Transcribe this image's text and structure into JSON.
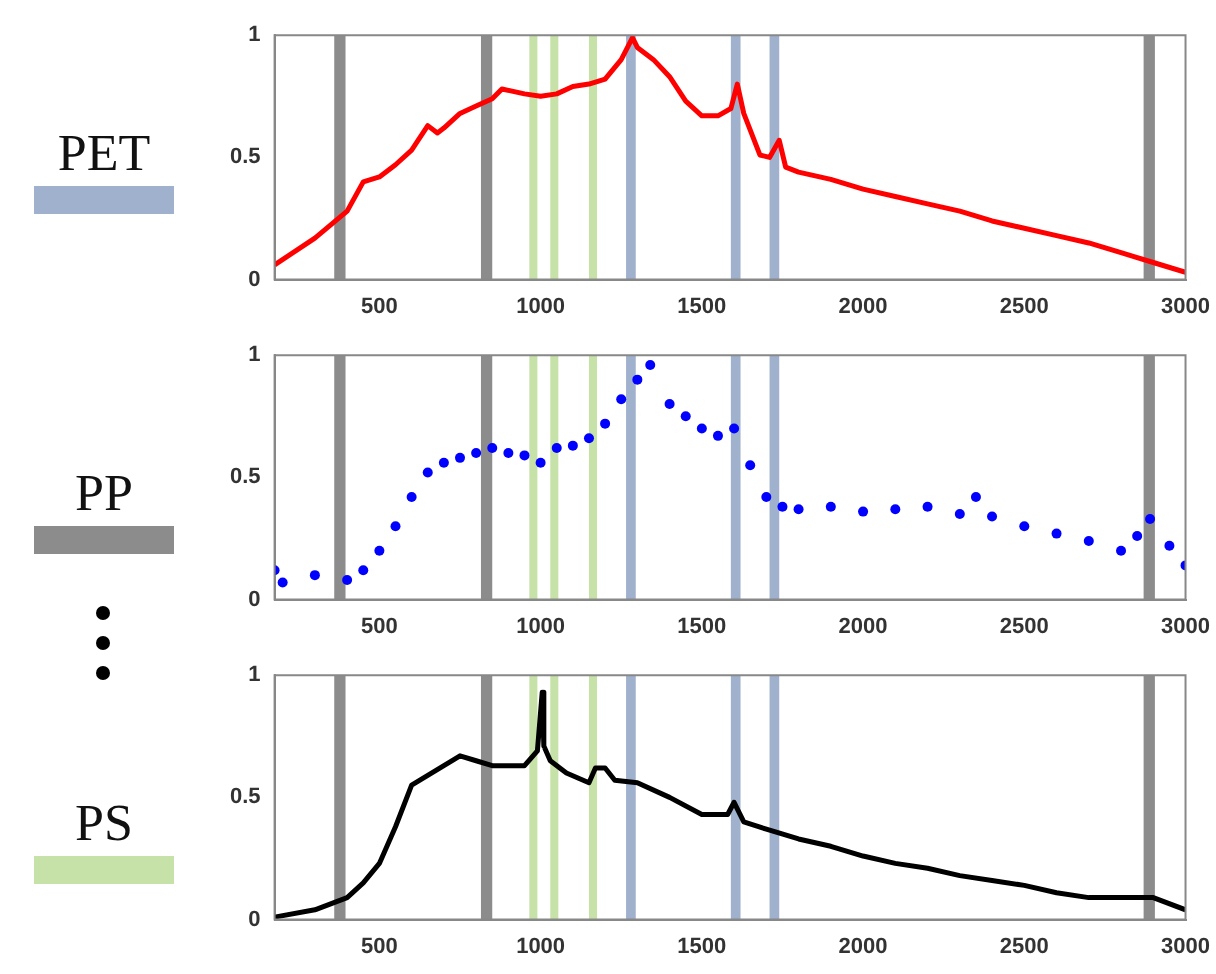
{
  "chart_data": [
    {
      "type": "line",
      "xlim": [
        175,
        3000
      ],
      "xticks": [
        500,
        1000,
        1500,
        2000,
        2500,
        3000
      ],
      "ylim": [
        0,
        1
      ],
      "yticks": [
        0,
        0.5,
        1
      ],
      "series": [
        {
          "color": "#ff0000",
          "x": [
            175,
            300,
            400,
            450,
            500,
            550,
            600,
            650,
            680,
            700,
            750,
            800,
            850,
            880,
            950,
            1000,
            1050,
            1100,
            1150,
            1200,
            1250,
            1285,
            1300,
            1350,
            1400,
            1450,
            1500,
            1550,
            1590,
            1610,
            1630,
            1680,
            1710,
            1740,
            1760,
            1800,
            1900,
            2000,
            2100,
            2200,
            2300,
            2400,
            2500,
            2600,
            2700,
            2800,
            2900,
            3000
          ],
          "values": [
            0.06,
            0.17,
            0.28,
            0.4,
            0.42,
            0.47,
            0.53,
            0.63,
            0.6,
            0.62,
            0.68,
            0.71,
            0.74,
            0.78,
            0.76,
            0.75,
            0.76,
            0.79,
            0.8,
            0.82,
            0.9,
            0.99,
            0.95,
            0.9,
            0.83,
            0.73,
            0.67,
            0.67,
            0.7,
            0.8,
            0.68,
            0.51,
            0.5,
            0.57,
            0.46,
            0.44,
            0.41,
            0.37,
            0.34,
            0.31,
            0.28,
            0.24,
            0.21,
            0.18,
            0.15,
            0.11,
            0.07,
            0.03
          ]
        }
      ],
      "bands": [
        {
          "axis": "x",
          "from": 360,
          "to": 395,
          "color": "#8c8c8c"
        },
        {
          "axis": "x",
          "from": 815,
          "to": 850,
          "color": "#8c8c8c"
        },
        {
          "axis": "x",
          "from": 2870,
          "to": 2905,
          "color": "#8c8c8c"
        },
        {
          "axis": "x",
          "from": 965,
          "to": 990,
          "color": "#c6e2a8"
        },
        {
          "axis": "x",
          "from": 1030,
          "to": 1055,
          "color": "#c6e2a8"
        },
        {
          "axis": "x",
          "from": 1150,
          "to": 1175,
          "color": "#c6e2a8"
        },
        {
          "axis": "x",
          "from": 1265,
          "to": 1295,
          "color": "#9fb1cc"
        },
        {
          "axis": "x",
          "from": 1590,
          "to": 1620,
          "color": "#9fb1cc"
        },
        {
          "axis": "x",
          "from": 1710,
          "to": 1740,
          "color": "#9fb1cc"
        }
      ]
    },
    {
      "type": "scatter",
      "marker": "circle",
      "xlim": [
        175,
        3000
      ],
      "xticks": [
        500,
        1000,
        1500,
        2000,
        2500,
        3000
      ],
      "ylim": [
        0,
        1
      ],
      "yticks": [
        0,
        0.5,
        1
      ],
      "series": [
        {
          "color": "#0000ff",
          "x": [
            175,
            200,
            300,
            400,
            450,
            500,
            550,
            600,
            650,
            700,
            750,
            800,
            850,
            900,
            950,
            1000,
            1050,
            1100,
            1150,
            1200,
            1250,
            1300,
            1340,
            1400,
            1450,
            1500,
            1550,
            1600,
            1650,
            1700,
            1750,
            1800,
            1900,
            2000,
            2100,
            2200,
            2300,
            2350,
            2400,
            2500,
            2600,
            2700,
            2800,
            2850,
            2890,
            2950,
            3000
          ],
          "values": [
            0.12,
            0.07,
            0.1,
            0.08,
            0.12,
            0.2,
            0.3,
            0.42,
            0.52,
            0.56,
            0.58,
            0.6,
            0.62,
            0.6,
            0.59,
            0.56,
            0.62,
            0.63,
            0.66,
            0.72,
            0.82,
            0.9,
            0.96,
            0.8,
            0.75,
            0.7,
            0.67,
            0.7,
            0.55,
            0.42,
            0.38,
            0.37,
            0.38,
            0.36,
            0.37,
            0.38,
            0.35,
            0.42,
            0.34,
            0.3,
            0.27,
            0.24,
            0.2,
            0.26,
            0.33,
            0.22,
            0.14
          ]
        }
      ],
      "bands": [
        {
          "axis": "x",
          "from": 360,
          "to": 395,
          "color": "#8c8c8c"
        },
        {
          "axis": "x",
          "from": 815,
          "to": 850,
          "color": "#8c8c8c"
        },
        {
          "axis": "x",
          "from": 2870,
          "to": 2905,
          "color": "#8c8c8c"
        },
        {
          "axis": "x",
          "from": 965,
          "to": 990,
          "color": "#c6e2a8"
        },
        {
          "axis": "x",
          "from": 1030,
          "to": 1055,
          "color": "#c6e2a8"
        },
        {
          "axis": "x",
          "from": 1150,
          "to": 1175,
          "color": "#c6e2a8"
        },
        {
          "axis": "x",
          "from": 1265,
          "to": 1295,
          "color": "#9fb1cc"
        },
        {
          "axis": "x",
          "from": 1590,
          "to": 1620,
          "color": "#9fb1cc"
        },
        {
          "axis": "x",
          "from": 1710,
          "to": 1740,
          "color": "#9fb1cc"
        }
      ]
    },
    {
      "type": "line",
      "xlim": [
        175,
        3000
      ],
      "xticks": [
        500,
        1000,
        1500,
        2000,
        2500,
        3000
      ],
      "ylim": [
        0,
        1
      ],
      "yticks": [
        0,
        0.5,
        1
      ],
      "series": [
        {
          "color": "#000000",
          "x": [
            175,
            300,
            400,
            450,
            500,
            550,
            600,
            650,
            700,
            750,
            800,
            850,
            900,
            950,
            990,
            1005,
            1010,
            1030,
            1080,
            1150,
            1170,
            1200,
            1230,
            1300,
            1400,
            1500,
            1580,
            1600,
            1630,
            1700,
            1800,
            1900,
            2000,
            2100,
            2200,
            2300,
            2400,
            2500,
            2600,
            2700,
            2800,
            2900,
            3000
          ],
          "values": [
            0.01,
            0.04,
            0.09,
            0.15,
            0.23,
            0.38,
            0.55,
            0.59,
            0.63,
            0.67,
            0.65,
            0.63,
            0.63,
            0.63,
            0.69,
            0.93,
            0.71,
            0.65,
            0.6,
            0.56,
            0.62,
            0.62,
            0.57,
            0.56,
            0.5,
            0.43,
            0.43,
            0.48,
            0.4,
            0.37,
            0.33,
            0.3,
            0.26,
            0.23,
            0.21,
            0.18,
            0.16,
            0.14,
            0.11,
            0.09,
            0.09,
            0.09,
            0.04
          ]
        }
      ],
      "bands": [
        {
          "axis": "x",
          "from": 360,
          "to": 395,
          "color": "#8c8c8c"
        },
        {
          "axis": "x",
          "from": 815,
          "to": 850,
          "color": "#8c8c8c"
        },
        {
          "axis": "x",
          "from": 2870,
          "to": 2905,
          "color": "#8c8c8c"
        },
        {
          "axis": "x",
          "from": 965,
          "to": 990,
          "color": "#c6e2a8"
        },
        {
          "axis": "x",
          "from": 1030,
          "to": 1055,
          "color": "#c6e2a8"
        },
        {
          "axis": "x",
          "from": 1150,
          "to": 1175,
          "color": "#c6e2a8"
        },
        {
          "axis": "x",
          "from": 1265,
          "to": 1295,
          "color": "#9fb1cc"
        },
        {
          "axis": "x",
          "from": 1590,
          "to": 1620,
          "color": "#9fb1cc"
        },
        {
          "axis": "x",
          "from": 1710,
          "to": 1740,
          "color": "#9fb1cc"
        }
      ]
    },
    {
      "type": "other",
      "categories": [
        "PET",
        "PP",
        "PS"
      ],
      "colors": [
        "#9fb1cc",
        "#8c8c8c",
        "#c6e2a8"
      ]
    }
  ]
}
